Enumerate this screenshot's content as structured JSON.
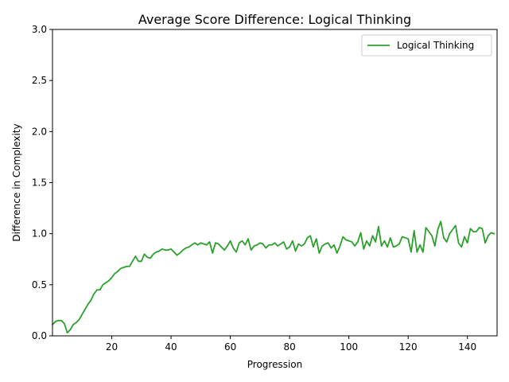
{
  "chart_data": {
    "type": "line",
    "title": "Average Score Difference: Logical Thinking",
    "xlabel": "Progression",
    "ylabel": "Difference in Complexity",
    "xlim": [
      0,
      150
    ],
    "ylim": [
      0,
      3.0
    ],
    "xticks": [
      20,
      40,
      60,
      80,
      100,
      120,
      140
    ],
    "yticks": [
      0.0,
      0.5,
      1.0,
      1.5,
      2.0,
      2.5,
      3.0
    ],
    "xtick_labels": [
      "20",
      "40",
      "60",
      "80",
      "100",
      "120",
      "140"
    ],
    "ytick_labels": [
      "0.0",
      "0.5",
      "1.0",
      "1.5",
      "2.0",
      "2.5",
      "3.0"
    ],
    "grid": false,
    "legend_position": "upper right",
    "series": [
      {
        "name": "Logical Thinking",
        "color": "#2ca02c",
        "x": [
          0,
          1,
          2,
          3,
          4,
          5,
          6,
          7,
          8,
          9,
          10,
          11,
          12,
          13,
          14,
          15,
          16,
          17,
          18,
          19,
          20,
          21,
          22,
          23,
          24,
          25,
          26,
          27,
          28,
          29,
          30,
          31,
          32,
          33,
          34,
          35,
          36,
          37,
          38,
          39,
          40,
          41,
          42,
          43,
          44,
          45,
          46,
          47,
          48,
          49,
          50,
          51,
          52,
          53,
          54,
          55,
          56,
          57,
          58,
          59,
          60,
          61,
          62,
          63,
          64,
          65,
          66,
          67,
          68,
          69,
          70,
          71,
          72,
          73,
          74,
          75,
          76,
          77,
          78,
          79,
          80,
          81,
          82,
          83,
          84,
          85,
          86,
          87,
          88,
          89,
          90,
          91,
          92,
          93,
          94,
          95,
          96,
          97,
          98,
          99,
          100,
          101,
          102,
          103,
          104,
          105,
          106,
          107,
          108,
          109,
          110,
          111,
          112,
          113,
          114,
          115,
          116,
          117,
          118,
          119,
          120,
          121,
          122,
          123,
          124,
          125,
          126,
          127,
          128,
          129,
          130,
          131,
          132,
          133,
          134,
          135,
          136,
          137,
          138,
          139,
          140,
          141,
          142,
          143,
          144,
          145,
          146,
          147,
          148,
          149
        ],
        "y": [
          0.11,
          0.14,
          0.15,
          0.15,
          0.12,
          0.03,
          0.06,
          0.11,
          0.13,
          0.16,
          0.21,
          0.26,
          0.31,
          0.35,
          0.41,
          0.45,
          0.45,
          0.5,
          0.52,
          0.54,
          0.57,
          0.61,
          0.63,
          0.66,
          0.67,
          0.68,
          0.68,
          0.73,
          0.78,
          0.73,
          0.73,
          0.8,
          0.77,
          0.76,
          0.8,
          0.82,
          0.83,
          0.85,
          0.84,
          0.84,
          0.85,
          0.82,
          0.79,
          0.81,
          0.84,
          0.86,
          0.87,
          0.89,
          0.91,
          0.89,
          0.91,
          0.9,
          0.89,
          0.92,
          0.81,
          0.91,
          0.9,
          0.87,
          0.84,
          0.88,
          0.93,
          0.86,
          0.82,
          0.91,
          0.93,
          0.89,
          0.95,
          0.84,
          0.88,
          0.89,
          0.91,
          0.9,
          0.86,
          0.89,
          0.89,
          0.91,
          0.88,
          0.9,
          0.92,
          0.85,
          0.87,
          0.93,
          0.83,
          0.9,
          0.88,
          0.9,
          0.96,
          0.98,
          0.87,
          0.95,
          0.81,
          0.88,
          0.9,
          0.91,
          0.86,
          0.89,
          0.81,
          0.88,
          0.97,
          0.94,
          0.93,
          0.92,
          0.88,
          0.92,
          1.01,
          0.85,
          0.93,
          0.88,
          0.98,
          0.92,
          1.07,
          0.88,
          0.93,
          0.87,
          0.96,
          0.87,
          0.88,
          0.9,
          0.97,
          0.96,
          0.95,
          0.82,
          1.03,
          0.82,
          0.89,
          0.82,
          1.06,
          1.02,
          0.98,
          0.88,
          1.04,
          1.12,
          0.96,
          0.92,
          1.0,
          1.04,
          1.08,
          0.91,
          0.87,
          0.97,
          0.91,
          1.05,
          1.02,
          1.02,
          1.06,
          1.05,
          0.91,
          0.98,
          1.01,
          1.0
        ]
      }
    ]
  }
}
